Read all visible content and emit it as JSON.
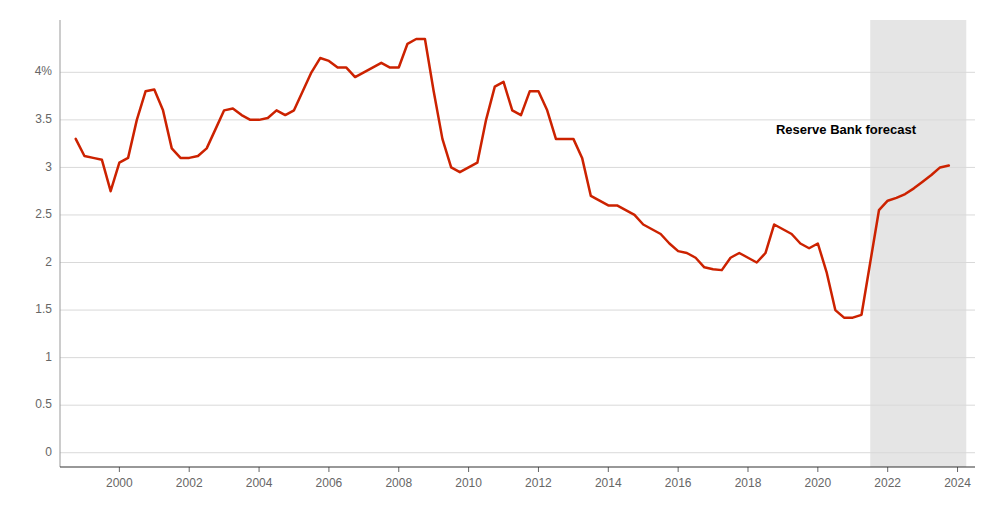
{
  "chart_data": {
    "type": "line",
    "color": "#cc2200",
    "x": [
      1998.75,
      1999.0,
      1999.25,
      1999.5,
      1999.75,
      2000.0,
      2000.25,
      2000.5,
      2000.75,
      2001.0,
      2001.25,
      2001.5,
      2001.75,
      2002.0,
      2002.25,
      2002.5,
      2002.75,
      2003.0,
      2003.25,
      2003.5,
      2003.75,
      2004.0,
      2004.25,
      2004.5,
      2004.75,
      2005.0,
      2005.25,
      2005.5,
      2005.75,
      2006.0,
      2006.25,
      2006.5,
      2006.75,
      2007.0,
      2007.25,
      2007.5,
      2007.75,
      2008.0,
      2008.25,
      2008.5,
      2008.75,
      2009.0,
      2009.25,
      2009.5,
      2009.75,
      2010.0,
      2010.25,
      2010.5,
      2010.75,
      2011.0,
      2011.25,
      2011.5,
      2011.75,
      2012.0,
      2012.25,
      2012.5,
      2012.75,
      2013.0,
      2013.25,
      2013.5,
      2013.75,
      2014.0,
      2014.25,
      2014.5,
      2014.75,
      2015.0,
      2015.25,
      2015.5,
      2015.75,
      2016.0,
      2016.25,
      2016.5,
      2016.75,
      2017.0,
      2017.25,
      2017.5,
      2017.75,
      2018.0,
      2018.25,
      2018.5,
      2018.75,
      2019.0,
      2019.25,
      2019.5,
      2019.75,
      2020.0,
      2020.25,
      2020.5,
      2020.75,
      2021.0,
      2021.25,
      2021.5,
      2021.75,
      2022.0,
      2022.25,
      2022.5,
      2022.75,
      2023.0,
      2023.25,
      2023.5,
      2023.75
    ],
    "values": [
      3.3,
      3.12,
      3.1,
      3.08,
      2.75,
      3.05,
      3.1,
      3.5,
      3.8,
      3.82,
      3.6,
      3.2,
      3.1,
      3.1,
      3.12,
      3.2,
      3.4,
      3.6,
      3.62,
      3.55,
      3.5,
      3.5,
      3.52,
      3.6,
      3.55,
      3.6,
      3.8,
      4.0,
      4.15,
      4.12,
      4.05,
      4.05,
      3.95,
      4.0,
      4.05,
      4.1,
      4.05,
      4.05,
      4.3,
      4.35,
      4.35,
      3.8,
      3.3,
      3.0,
      2.95,
      3.0,
      3.05,
      3.5,
      3.85,
      3.9,
      3.6,
      3.55,
      3.8,
      3.8,
      3.6,
      3.3,
      3.3,
      3.3,
      3.1,
      2.7,
      2.65,
      2.6,
      2.6,
      2.55,
      2.5,
      2.4,
      2.35,
      2.3,
      2.2,
      2.12,
      2.1,
      2.05,
      1.95,
      1.93,
      1.92,
      2.05,
      2.1,
      2.05,
      2.0,
      2.1,
      2.4,
      2.35,
      2.3,
      2.2,
      2.15,
      2.2,
      1.9,
      1.5,
      1.42,
      1.42,
      1.45,
      2.0,
      2.55,
      2.65,
      2.68,
      2.72,
      2.78,
      2.85,
      2.92,
      3.0,
      3.02
    ],
    "xlim": [
      1998.3,
      2024.5
    ],
    "xticks": [
      2000,
      2002,
      2004,
      2006,
      2008,
      2010,
      2012,
      2014,
      2016,
      2018,
      2020,
      2022,
      2024
    ],
    "ylim": [
      -0.15,
      4.55
    ],
    "yticks": [
      0,
      0.5,
      1,
      1.5,
      2,
      2.5,
      3,
      3.5,
      {
        "value": 4.0,
        "label": "4%"
      }
    ],
    "grid": true,
    "forecast": {
      "start": 2021.5,
      "end": 2024.25,
      "color": "#e5e5e5"
    },
    "annotations": [
      {
        "text": "Reserve Bank forecast",
        "x": 2018.8,
        "y": 3.35
      }
    ]
  }
}
